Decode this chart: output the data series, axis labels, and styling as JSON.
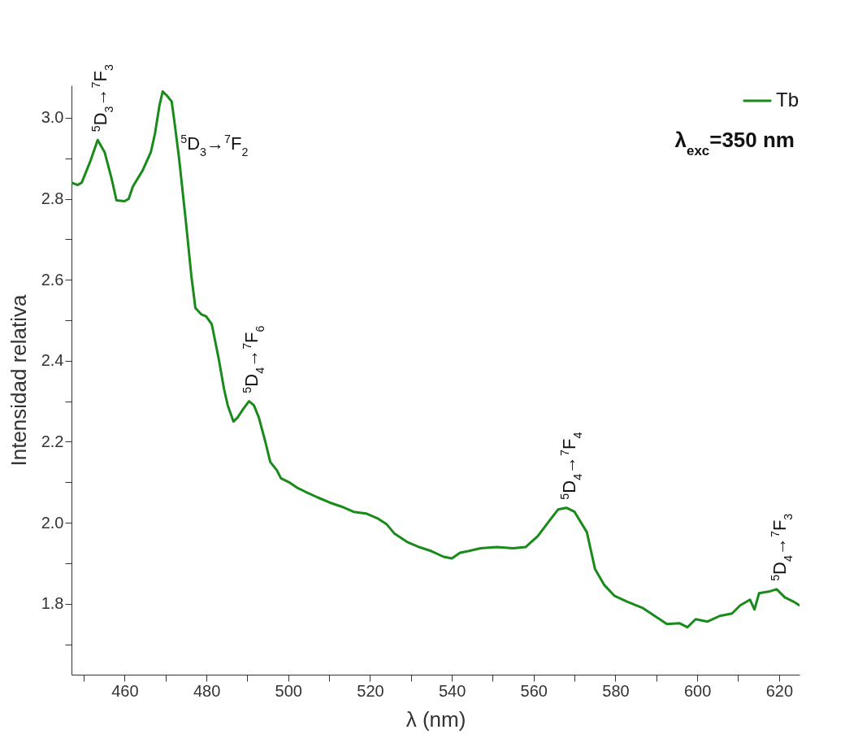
{
  "chart_data": {
    "type": "line",
    "xlabel": "λ (nm)",
    "ylabel": "Intensidad relativa",
    "xlim": [
      447,
      625
    ],
    "ylim": [
      1.625,
      3.08
    ],
    "xticks": [
      {
        "value": 450,
        "label": null
      },
      460,
      {
        "value": 470,
        "label": null
      },
      480,
      {
        "value": 490,
        "label": null
      },
      500,
      {
        "value": 510,
        "label": null
      },
      520,
      {
        "value": 530,
        "label": null
      },
      540,
      {
        "value": 550,
        "label": null
      },
      560,
      {
        "value": 570,
        "label": null
      },
      580,
      {
        "value": 590,
        "label": null
      },
      600,
      {
        "value": 610,
        "label": null
      },
      620
    ],
    "yticks": [
      {
        "value": 1.7,
        "label": null
      },
      {
        "value": 1.8,
        "label": "1.8"
      },
      {
        "value": 1.9,
        "label": null
      },
      {
        "value": 2.0,
        "label": "2.0"
      },
      {
        "value": 2.1,
        "label": null
      },
      {
        "value": 2.2,
        "label": "2.2"
      },
      {
        "value": 2.3,
        "label": null
      },
      {
        "value": 2.4,
        "label": "2.4"
      },
      {
        "value": 2.5,
        "label": null
      },
      {
        "value": 2.6,
        "label": "2.6"
      },
      {
        "value": 2.7,
        "label": null
      },
      {
        "value": 2.8,
        "label": "2.8"
      },
      {
        "value": 2.9,
        "label": null
      },
      {
        "value": 3.0,
        "label": "3.0"
      }
    ],
    "grid": false,
    "legend": "top right",
    "line_style": "solid",
    "series": [
      {
        "name": "Tb",
        "color": "#1a8a1a",
        "x": [
          447,
          448.5,
          449.5,
          451.5,
          453.4,
          455.1,
          456.8,
          458,
          460,
          461,
          462,
          464.4,
          466.4,
          467.4,
          468.5,
          469.3,
          470.3,
          471.5,
          472.3,
          473.3,
          474.9,
          476.3,
          477.3,
          478.7,
          479.9,
          481.3,
          482.9,
          484.3,
          485.2,
          486.6,
          487.6,
          489.2,
          490.4,
          491.6,
          492.8,
          494.4,
          495.6,
          497.2,
          498.2,
          500.2,
          502.1,
          504.1,
          507.1,
          510.1,
          513,
          516,
          519,
          522,
          524,
          526,
          529,
          532,
          535,
          538,
          540,
          542,
          544,
          547,
          551,
          555,
          558,
          561,
          564,
          566,
          568,
          570,
          573,
          575,
          577.3,
          579.7,
          582.7,
          586.6,
          589.6,
          592.6,
          595.6,
          597.6,
          599.6,
          602.5,
          605.5,
          608.5,
          610.5,
          612.9,
          614,
          615.1,
          617.5,
          619.4,
          621.4,
          623.4,
          625
        ],
        "values": [
          2.84,
          2.834,
          2.84,
          2.89,
          2.945,
          2.915,
          2.85,
          2.796,
          2.794,
          2.8,
          2.83,
          2.87,
          2.915,
          2.96,
          3.03,
          3.065,
          3.055,
          3.04,
          2.98,
          2.9,
          2.75,
          2.61,
          2.53,
          2.515,
          2.51,
          2.49,
          2.41,
          2.33,
          2.29,
          2.25,
          2.26,
          2.284,
          2.3,
          2.29,
          2.26,
          2.2,
          2.15,
          2.13,
          2.11,
          2.1,
          2.087,
          2.077,
          2.063,
          2.05,
          2.04,
          2.027,
          2.023,
          2.01,
          1.997,
          1.973,
          1.953,
          1.94,
          1.93,
          1.916,
          1.912,
          1.926,
          1.93,
          1.937,
          1.94,
          1.937,
          1.94,
          1.967,
          2.007,
          2.033,
          2.037,
          2.027,
          1.977,
          1.886,
          1.846,
          1.82,
          1.806,
          1.79,
          1.77,
          1.75,
          1.752,
          1.742,
          1.762,
          1.756,
          1.77,
          1.776,
          1.796,
          1.81,
          1.786,
          1.826,
          1.83,
          1.836,
          1.816,
          1.806,
          1.796
        ]
      }
    ],
    "annotations": [
      {
        "text": "$^{5}$D$_{3}$→$^{7}$F$_{3}$",
        "x": 453.4,
        "y": 2.945
      },
      {
        "text": "$^{5}$D$_{3}$→$^{7}$F$_{2}$",
        "x": 469.3,
        "y": 3.065
      },
      {
        "text": "$^{5}$D$_{4}$→$^{7}$F$_{6}$",
        "x": 490.4,
        "y": 2.3
      },
      {
        "text": "$^{5}$D$_{4}$→$^{7}$F$_{4}$",
        "x": 568,
        "y": 2.037
      },
      {
        "text": "$^{5}$D$_{4}$→$^{7}$F$_{3}$",
        "x": 619.4,
        "y": 1.836
      },
      "λ$_{exc}$=350 nm"
    ]
  }
}
